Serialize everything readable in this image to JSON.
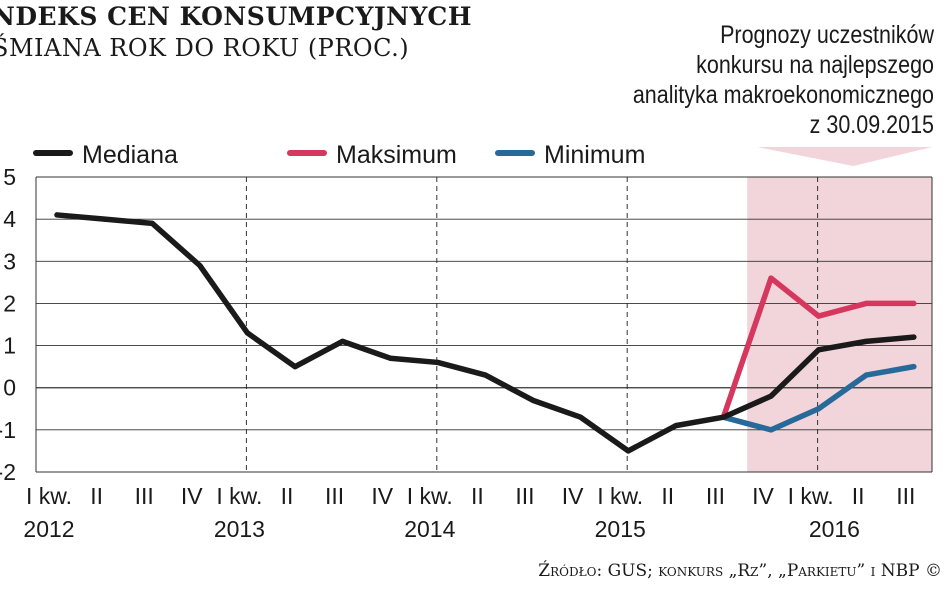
{
  "header": {
    "title": "NDEKS CEN KONSUMPCYJNYCH",
    "subtitle": "ŚMIANA ROK DO ROKU (PROC.)"
  },
  "forecast_note": {
    "line1": "Prognozy uczestników",
    "line2": "konkursu na najlepszego",
    "line3": "analityka makroekonomicznego",
    "line4": "z 30.09.2015"
  },
  "source": "Źródło: GUS; konkurs „Rz”, „Parkietu” i NBP ©",
  "colors": {
    "median": "#1a1a1a",
    "maximum": "#d6375e",
    "minimum": "#276a9a",
    "forecast_band": "#f2d5da",
    "grid": "#333333"
  },
  "chart_data": {
    "type": "line",
    "categories": [
      "I kw. 2012",
      "II",
      "III",
      "IV",
      "I kw. 2013",
      "II",
      "III",
      "IV",
      "I kw. 2014",
      "II",
      "III",
      "IV",
      "I kw. 2015",
      "II",
      "III",
      "IV",
      "I kw. 2016",
      "II",
      "III"
    ],
    "x_tick_labels": [
      "I kw.",
      "II",
      "III",
      "IV",
      "I kw.",
      "II",
      "III",
      "IV",
      "I kw.",
      "II",
      "III",
      "IV",
      "I kw.",
      "II",
      "III",
      "IV",
      "I kw.",
      "II",
      "III"
    ],
    "year_labels": [
      {
        "label": "2012",
        "category_index": 0
      },
      {
        "label": "2013",
        "category_index": 4
      },
      {
        "label": "2014",
        "category_index": 8
      },
      {
        "label": "2015",
        "category_index": 12
      },
      {
        "label": "2016",
        "category_index": 16.5
      }
    ],
    "series": [
      {
        "name": "Mediana",
        "color": "#1a1a1a",
        "values": [
          4.1,
          4.0,
          3.9,
          2.9,
          1.3,
          0.5,
          1.1,
          0.7,
          0.6,
          0.3,
          -0.3,
          -0.7,
          -1.5,
          -0.9,
          -0.7,
          -0.2,
          0.9,
          1.1,
          1.2
        ]
      },
      {
        "name": "Maksimum",
        "color": "#d6375e",
        "values": [
          null,
          null,
          null,
          null,
          null,
          null,
          null,
          null,
          null,
          null,
          null,
          null,
          null,
          null,
          -0.7,
          2.6,
          1.7,
          2.0,
          2.0
        ]
      },
      {
        "name": "Minimum",
        "color": "#276a9a",
        "values": [
          null,
          null,
          null,
          null,
          null,
          null,
          null,
          null,
          null,
          null,
          null,
          null,
          null,
          null,
          -0.7,
          -1.0,
          -0.5,
          0.3,
          0.5
        ]
      }
    ],
    "y_ticks": [
      5,
      4,
      3,
      2,
      1,
      0,
      -1,
      -2
    ],
    "y_tick_labels": [
      "5",
      "4",
      "3",
      "2",
      "1",
      "0",
      "-1",
      "-2"
    ],
    "ylim": [
      -2,
      5
    ],
    "forecast_start_index": 14.5,
    "grid": true,
    "legend_placement": "top"
  }
}
